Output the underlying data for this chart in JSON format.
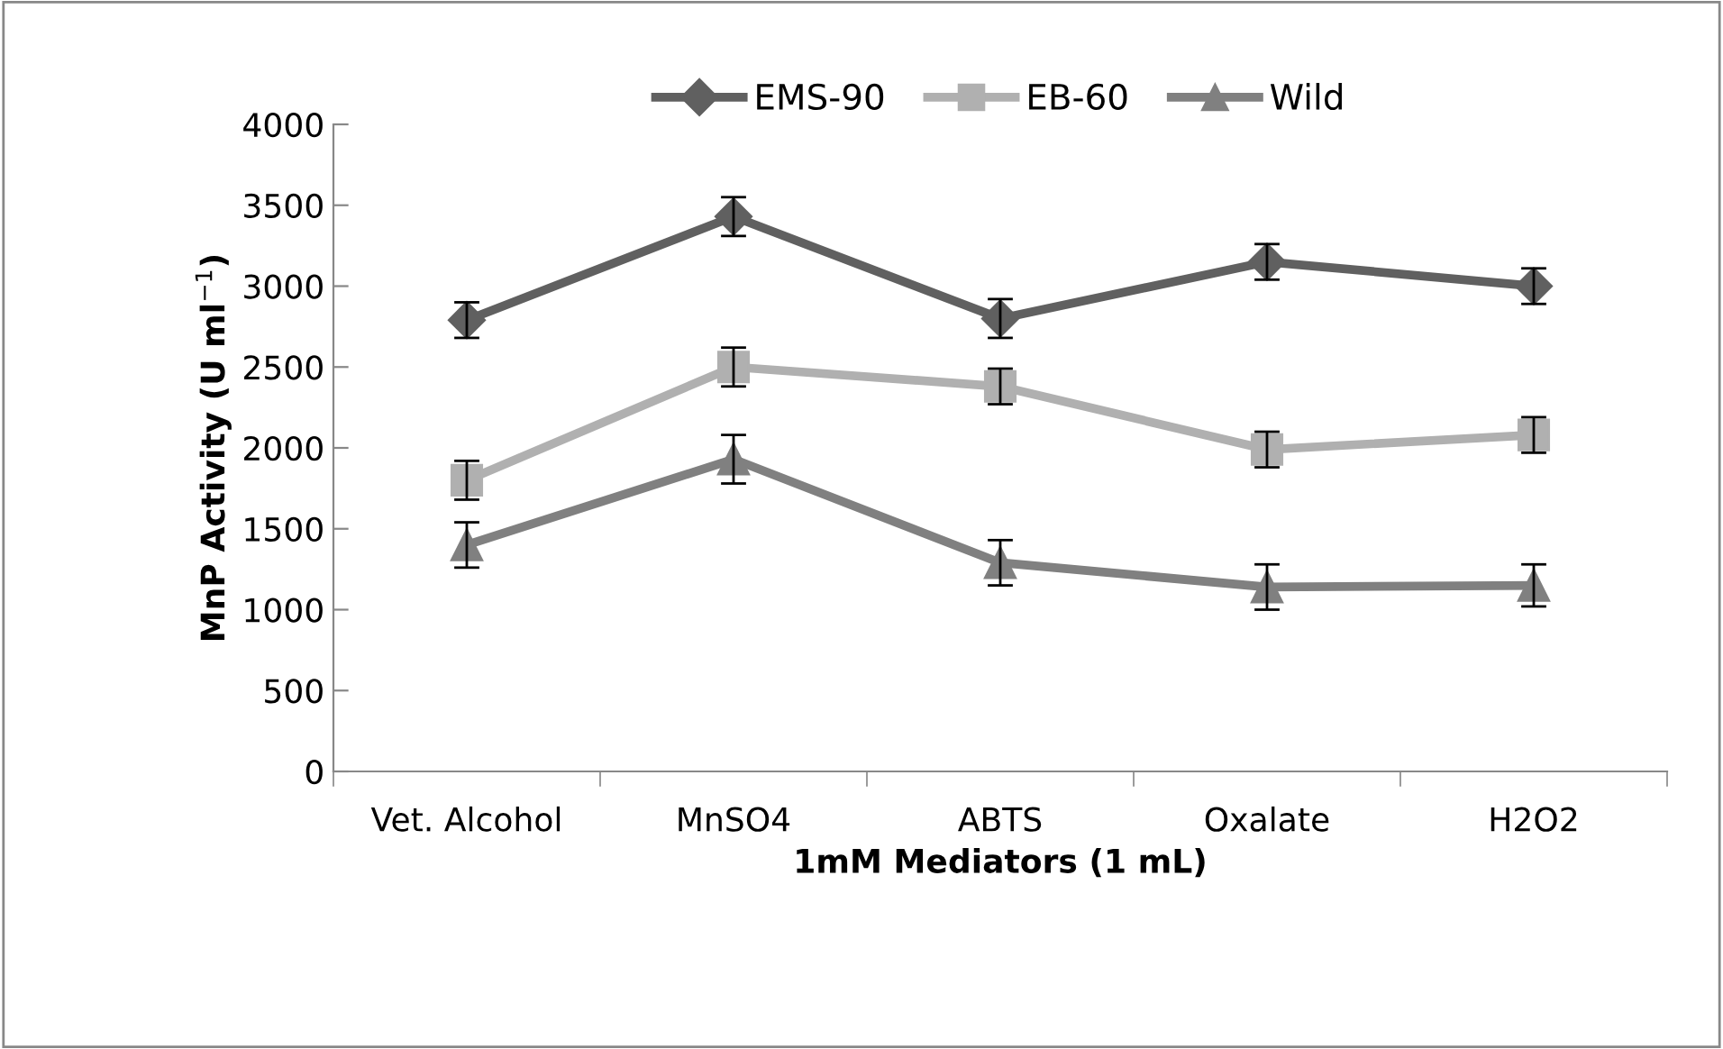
{
  "chart_data": {
    "type": "line",
    "xlabel": "1mM Mediators (1 mL)",
    "ylabel": "MnP Activity (U ml$^{−1}$)",
    "categories": [
      "Vet. Alcohol",
      "MnSO4",
      "ABTS",
      "Oxalate",
      "H2O2"
    ],
    "series": [
      {
        "name": "EMS-90",
        "color": "#606060",
        "marker": "diamond",
        "values": [
          2790,
          3430,
          2800,
          3150,
          3000
        ],
        "errors": [
          110,
          120,
          120,
          110,
          110
        ]
      },
      {
        "name": "EB-60",
        "color": "#b0b0b0",
        "marker": "square",
        "values": [
          1800,
          2500,
          2380,
          1990,
          2080
        ],
        "errors": [
          120,
          120,
          110,
          110,
          110
        ]
      },
      {
        "name": "Wild",
        "color": "#808080",
        "marker": "triangle",
        "values": [
          1400,
          1930,
          1290,
          1140,
          1150
        ],
        "errors": [
          140,
          150,
          140,
          140,
          130
        ]
      }
    ],
    "ylim": [
      0,
      4000
    ],
    "yticks": [
      0,
      500,
      1000,
      1500,
      2000,
      2500,
      3000,
      3500,
      4000
    ],
    "grid": false,
    "legend": "top",
    "line_style": "solid"
  }
}
